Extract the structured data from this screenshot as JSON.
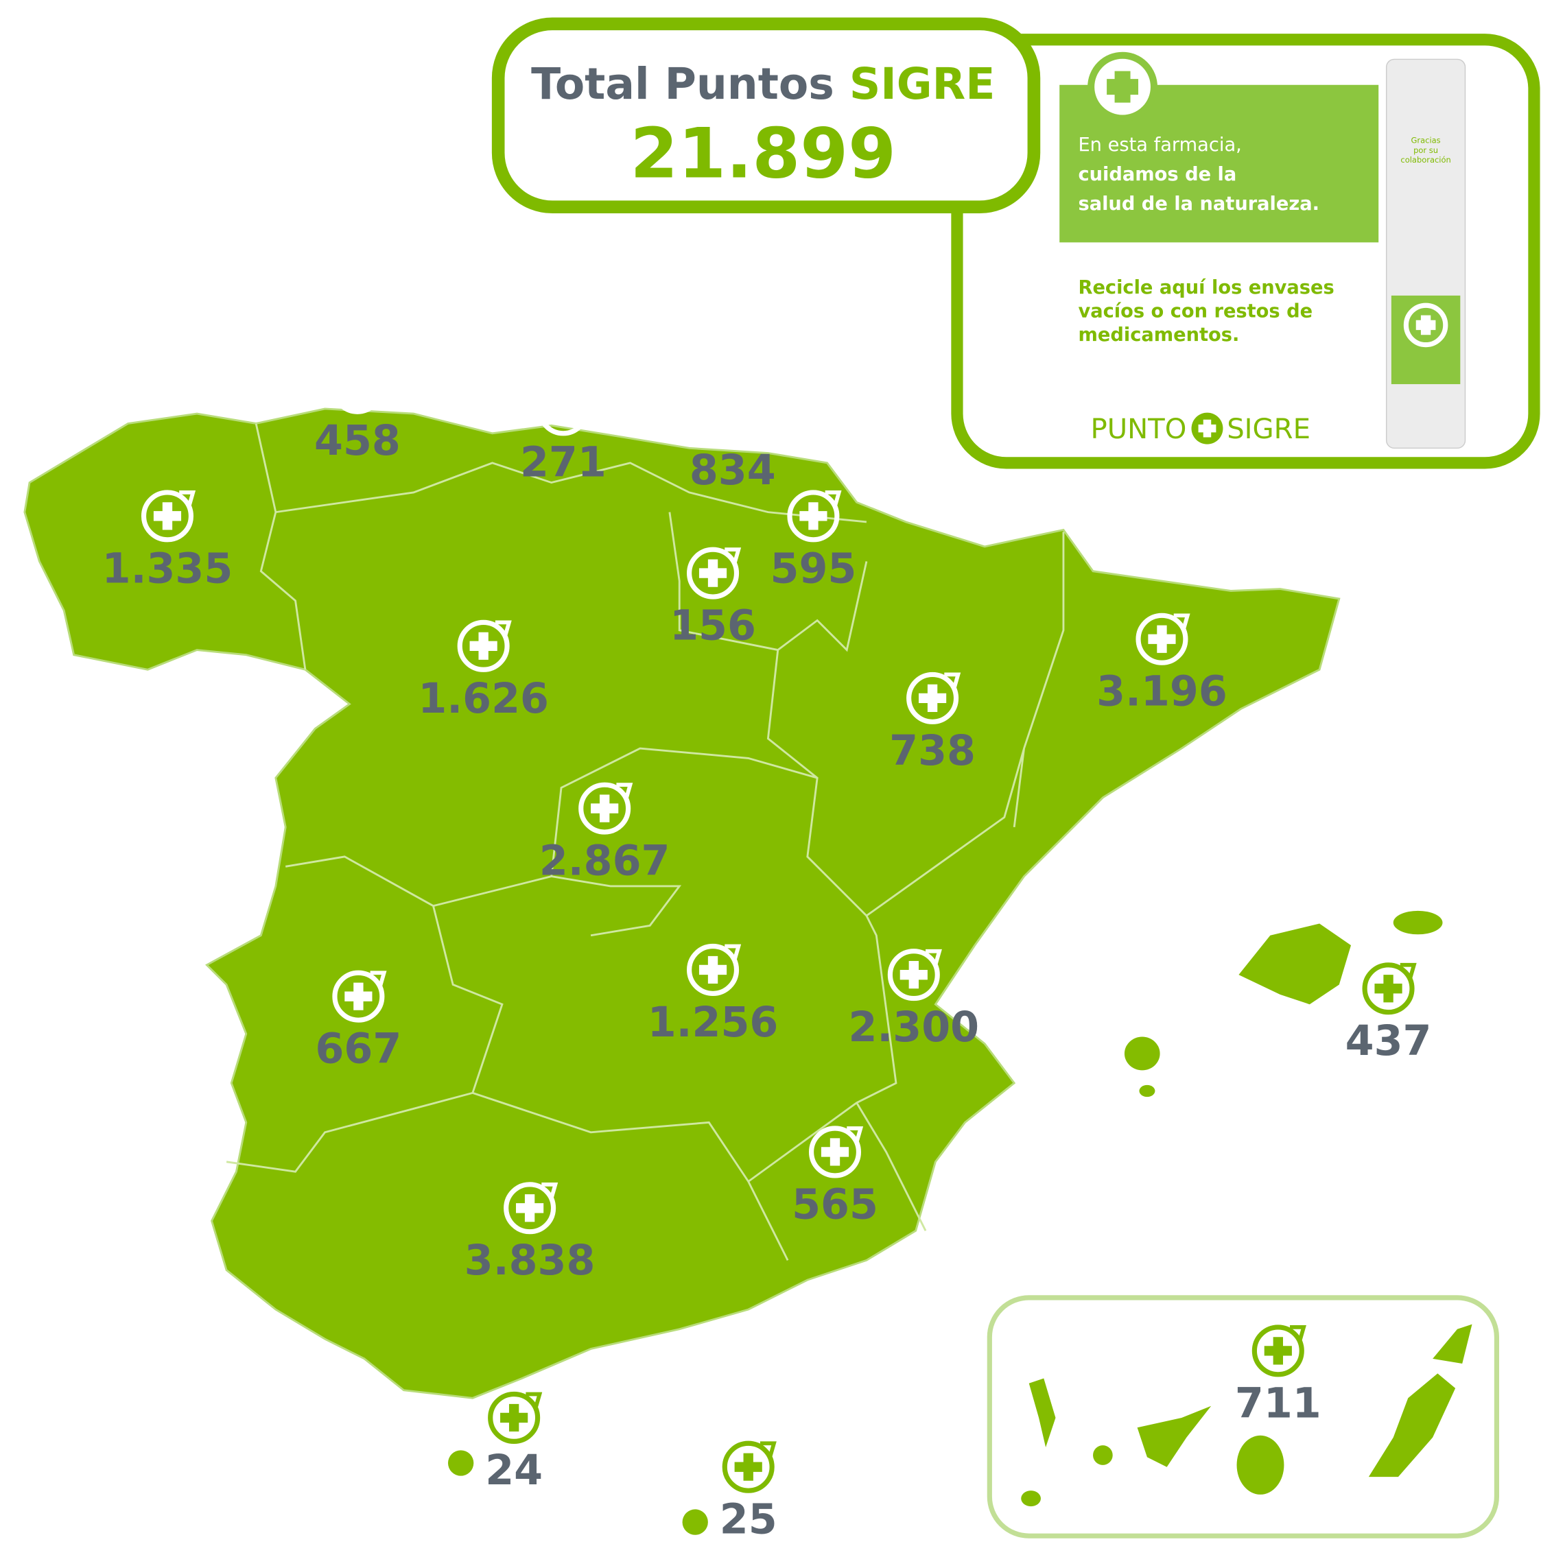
{
  "header": {
    "title_prefix": "Total Puntos",
    "title_brand": "SIGRE",
    "total": "21.899"
  },
  "poster": {
    "lines": [
      "En esta farmacia,",
      "cuidamos de la",
      "salud de la naturaleza."
    ],
    "recycle_lines": [
      "Recicle aquí los envases",
      "vacíos o con restos de",
      "medicamentos."
    ],
    "brand_left": "PUNTO",
    "brand_right": "SIGRE",
    "bin_text": [
      "Gracias",
      "por su",
      "colaboración"
    ]
  },
  "map": {
    "region_counts": [
      "1.335",
      "458",
      "271",
      "834",
      "595",
      "156",
      "1.626",
      "738",
      "3.196",
      "2.867",
      "667",
      "1.256",
      "2.300",
      "437",
      "565",
      "3.838",
      "24",
      "25",
      "711"
    ]
  }
}
